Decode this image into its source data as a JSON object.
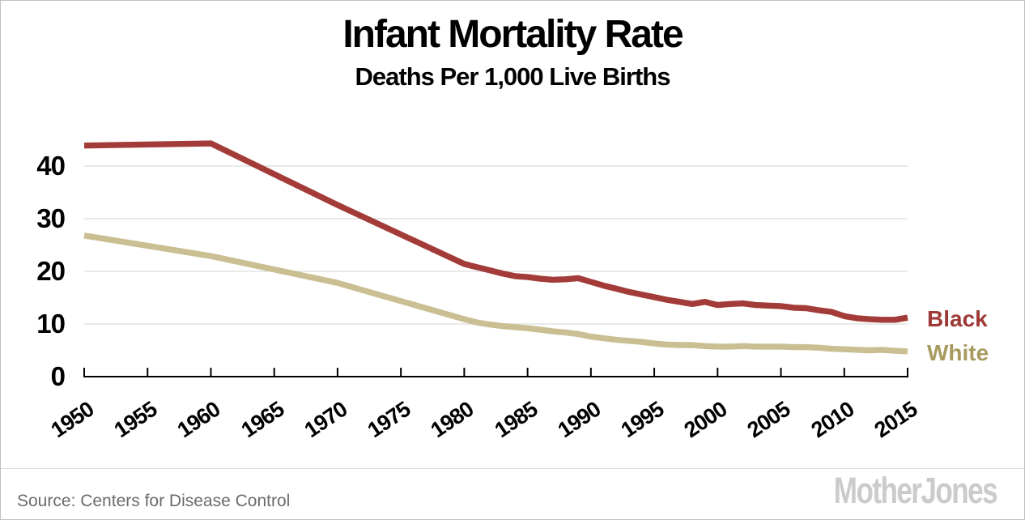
{
  "chart": {
    "title": "Infant Mortality Rate",
    "subtitle": "Deaths Per 1,000 Live Births"
  },
  "footer": {
    "source": "Source: Centers for Disease Control",
    "logo": "MotherJones"
  },
  "colors": {
    "background": "#ffffff",
    "frame_border": "#bfbfbf",
    "gridline": "#e2e2e2",
    "axis": "#000000",
    "text": "#000000",
    "source_text": "#6b6b6b",
    "logo_gray": "#cbcbcb"
  },
  "chart_data": {
    "type": "line",
    "title": "Infant Mortality Rate",
    "subtitle": "Deaths Per 1,000 Live Births",
    "xlabel": "",
    "ylabel": "",
    "xlim": [
      1950,
      2015
    ],
    "ylim": [
      0,
      46
    ],
    "x_ticks": [
      1950,
      1955,
      1960,
      1965,
      1970,
      1975,
      1980,
      1985,
      1990,
      1995,
      2000,
      2005,
      2010,
      2015
    ],
    "y_ticks": [
      0,
      10,
      20,
      30,
      40
    ],
    "grid": "horizontal",
    "legend_position": "right of line ends",
    "series": [
      {
        "name": "Black",
        "line_color": "#a33c38",
        "label_color": "#9d3936",
        "x": [
          1950,
          1960,
          1970,
          1980,
          1981,
          1982,
          1983,
          1984,
          1985,
          1986,
          1987,
          1988,
          1989,
          1990,
          1991,
          1992,
          1993,
          1994,
          1995,
          1996,
          1997,
          1998,
          1999,
          2000,
          2001,
          2002,
          2003,
          2004,
          2005,
          2006,
          2007,
          2008,
          2009,
          2010,
          2011,
          2012,
          2013,
          2014,
          2015
        ],
        "values": [
          43.9,
          44.3,
          32.6,
          21.4,
          20.8,
          20.2,
          19.6,
          19.1,
          18.9,
          18.6,
          18.4,
          18.5,
          18.7,
          18.0,
          17.3,
          16.7,
          16.1,
          15.6,
          15.1,
          14.6,
          14.2,
          13.8,
          14.2,
          13.6,
          13.8,
          13.9,
          13.6,
          13.5,
          13.4,
          13.1,
          13.0,
          12.6,
          12.3,
          11.5,
          11.1,
          10.9,
          10.8,
          10.8,
          11.2
        ]
      },
      {
        "name": "White",
        "line_color": "#c9bf93",
        "label_color": "#a89b5e",
        "x": [
          1950,
          1960,
          1970,
          1980,
          1981,
          1982,
          1983,
          1984,
          1985,
          1986,
          1987,
          1988,
          1989,
          1990,
          1991,
          1992,
          1993,
          1994,
          1995,
          1996,
          1997,
          1998,
          1999,
          2000,
          2001,
          2002,
          2003,
          2004,
          2005,
          2006,
          2007,
          2008,
          2009,
          2010,
          2011,
          2012,
          2013,
          2014,
          2015
        ],
        "values": [
          26.8,
          22.9,
          17.8,
          10.9,
          10.3,
          9.9,
          9.6,
          9.4,
          9.2,
          8.9,
          8.6,
          8.4,
          8.1,
          7.6,
          7.3,
          7.0,
          6.8,
          6.6,
          6.3,
          6.1,
          6.0,
          6.0,
          5.8,
          5.7,
          5.7,
          5.8,
          5.7,
          5.7,
          5.7,
          5.6,
          5.6,
          5.5,
          5.3,
          5.2,
          5.1,
          5.0,
          5.1,
          4.9,
          4.8
        ]
      }
    ]
  }
}
